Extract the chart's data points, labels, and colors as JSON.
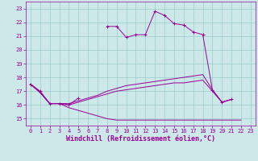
{
  "xlabel": "Windchill (Refroidissement éolien,°C)",
  "xlim": [
    -0.5,
    23.5
  ],
  "ylim": [
    14.5,
    23.5
  ],
  "yticks": [
    15,
    16,
    17,
    18,
    19,
    20,
    21,
    22,
    23
  ],
  "xticks": [
    0,
    1,
    2,
    3,
    4,
    5,
    6,
    7,
    8,
    9,
    10,
    11,
    12,
    13,
    14,
    15,
    16,
    17,
    18,
    19,
    20,
    21,
    22,
    23
  ],
  "bg_color": "#cce8e8",
  "grid_color": "#99cccc",
  "line_color": "#990099",
  "series0": [
    17.5,
    17.0,
    16.1,
    16.1,
    16.0,
    16.5,
    null,
    null,
    21.7,
    21.7,
    20.9,
    21.1,
    21.1,
    22.8,
    22.5,
    21.9,
    21.8,
    21.3,
    21.1,
    17.1,
    16.2,
    16.4,
    null,
    null
  ],
  "series1": [
    17.5,
    16.9,
    16.1,
    16.1,
    16.1,
    16.3,
    16.5,
    16.7,
    17.0,
    17.2,
    17.4,
    17.5,
    17.6,
    17.7,
    17.8,
    17.9,
    18.0,
    18.1,
    18.2,
    17.1,
    16.2,
    16.4,
    null,
    null
  ],
  "series2": [
    17.5,
    16.9,
    16.1,
    16.1,
    15.8,
    15.6,
    15.4,
    15.2,
    15.0,
    14.9,
    14.9,
    14.9,
    14.9,
    14.9,
    14.9,
    14.9,
    14.9,
    14.9,
    14.9,
    14.9,
    14.9,
    14.9,
    14.9,
    null
  ],
  "series3": [
    17.5,
    16.9,
    16.1,
    16.1,
    16.0,
    16.2,
    16.4,
    16.6,
    16.8,
    17.0,
    17.1,
    17.2,
    17.3,
    17.4,
    17.5,
    17.6,
    17.6,
    17.7,
    17.8,
    17.0,
    16.2,
    16.4,
    null,
    null
  ]
}
